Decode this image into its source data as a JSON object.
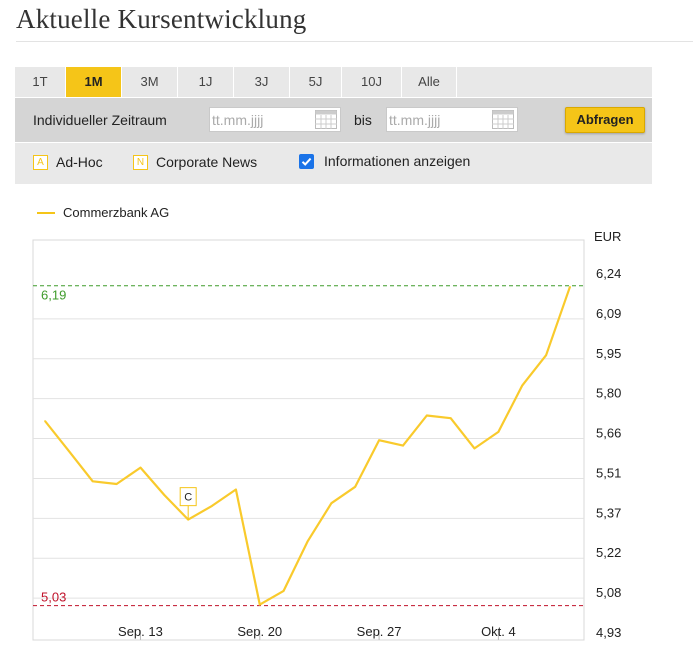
{
  "page": {
    "title": "Aktuelle Kursentwicklung"
  },
  "tabs": [
    {
      "label": "1T",
      "active": false
    },
    {
      "label": "1M",
      "active": true
    },
    {
      "label": "3M",
      "active": false
    },
    {
      "label": "1J",
      "active": false
    },
    {
      "label": "3J",
      "active": false
    },
    {
      "label": "5J",
      "active": false
    },
    {
      "label": "10J",
      "active": false
    },
    {
      "label": "Alle",
      "active": false
    }
  ],
  "range": {
    "label": "Individueller Zeitraum",
    "from_placeholder": "tt.mm.jjjj",
    "to_label": "bis",
    "to_placeholder": "tt.mm.jjjj",
    "submit_label": "Abfragen"
  },
  "filters": {
    "adhoc": {
      "badge": "A",
      "label": "Ad-Hoc"
    },
    "corporate": {
      "badge": "N",
      "label": "Corporate News"
    },
    "info": {
      "label": "Informationen anzeigen",
      "checked": true
    }
  },
  "colors": {
    "accent": "#f5c518",
    "line": "#f9ca2c",
    "max_line": "#3e9b2a",
    "min_line": "#c0122a"
  },
  "chart_data": {
    "type": "line",
    "series": [
      {
        "name": "Commerzbank AG",
        "values": [
          5.7,
          5.59,
          5.48,
          5.47,
          5.53,
          5.43,
          5.34,
          5.39,
          5.45,
          5.03,
          5.08,
          5.26,
          5.4,
          5.46,
          5.63,
          5.61,
          5.72,
          5.71,
          5.6,
          5.66,
          5.83,
          5.94,
          6.19
        ]
      }
    ],
    "ylabel": "EUR",
    "yticks": [
      "6,24",
      "6,09",
      "5,95",
      "5,80",
      "5,66",
      "5,51",
      "5,37",
      "5,22",
      "5,08",
      "4,93"
    ],
    "ylim": [
      4.93,
      6.24
    ],
    "xticks": [
      {
        "label": "Sep. 13",
        "index": 4
      },
      {
        "label": "Sep. 20",
        "index": 9
      },
      {
        "label": "Sep. 27",
        "index": 14
      },
      {
        "label": "Okt. 4",
        "index": 19
      }
    ],
    "max": {
      "value": 6.19,
      "label": "6,19"
    },
    "min": {
      "value": 5.03,
      "label": "5,03"
    },
    "annotations": [
      {
        "label": "C",
        "index": 6
      }
    ],
    "grid": true
  }
}
